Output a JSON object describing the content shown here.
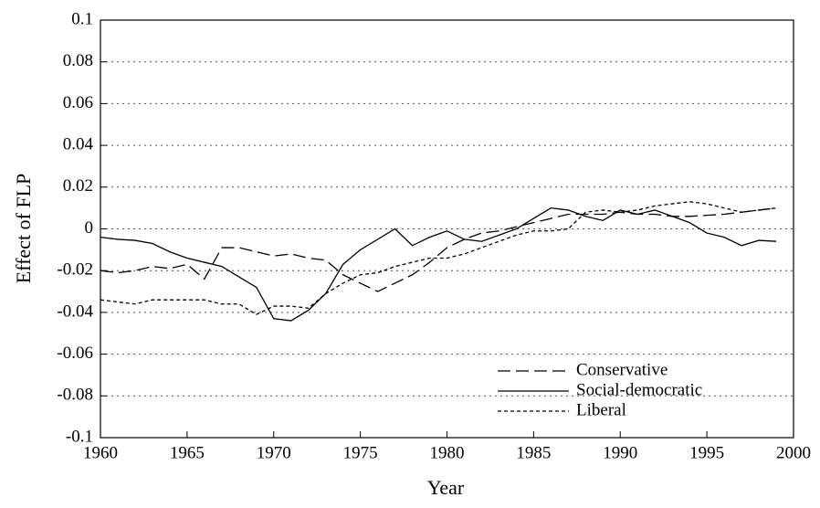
{
  "chart_data": {
    "type": "line",
    "x_label": "Year",
    "y_label": "Effect of FLP",
    "x": [
      1960,
      1961,
      1962,
      1963,
      1964,
      1965,
      1966,
      1967,
      1968,
      1969,
      1970,
      1971,
      1972,
      1973,
      1974,
      1975,
      1976,
      1977,
      1978,
      1979,
      1980,
      1981,
      1982,
      1983,
      1984,
      1985,
      1986,
      1987,
      1988,
      1989,
      1990,
      1991,
      1992,
      1993,
      1994,
      1995,
      1996,
      1997,
      1998,
      1999
    ],
    "series": [
      {
        "name": "Conservative",
        "color": "#000000",
        "line_style": "dashed",
        "values": [
          -0.02,
          -0.021,
          -0.02,
          -0.018,
          -0.019,
          -0.017,
          -0.024,
          -0.009,
          -0.009,
          -0.011,
          -0.013,
          -0.012,
          -0.014,
          -0.015,
          -0.022,
          -0.026,
          -0.03,
          -0.026,
          -0.022,
          -0.016,
          -0.009,
          -0.005,
          -0.002,
          -0.001,
          0.001,
          0.003,
          0.005,
          0.007,
          0.007,
          0.007,
          0.008,
          0.007,
          0.007,
          0.006,
          0.006,
          0.0065,
          0.007,
          0.008,
          0.009,
          0.01
        ]
      },
      {
        "name": "Social-democratic",
        "color": "#000000",
        "line_style": "solid",
        "values": [
          -0.004,
          -0.005,
          -0.0055,
          -0.007,
          -0.011,
          -0.014,
          -0.016,
          -0.018,
          -0.023,
          -0.028,
          -0.043,
          -0.044,
          -0.039,
          -0.031,
          -0.017,
          -0.01,
          -0.005,
          0.0,
          -0.008,
          -0.004,
          -0.001,
          -0.005,
          -0.006,
          -0.003,
          0.0,
          0.005,
          0.01,
          0.009,
          0.006,
          0.004,
          0.009,
          0.007,
          0.009,
          0.006,
          0.003,
          -0.002,
          -0.004,
          -0.008,
          -0.0055,
          -0.006
        ]
      },
      {
        "name": "Liberal",
        "color": "#000000",
        "line_style": "dotted",
        "values": [
          -0.034,
          -0.035,
          -0.036,
          -0.034,
          -0.034,
          -0.034,
          -0.034,
          -0.036,
          -0.036,
          -0.041,
          -0.037,
          -0.037,
          -0.038,
          -0.031,
          -0.026,
          -0.022,
          -0.021,
          -0.018,
          -0.016,
          -0.014,
          -0.014,
          -0.012,
          -0.009,
          -0.006,
          -0.003,
          -0.001,
          -0.001,
          0.0,
          0.008,
          0.009,
          0.008,
          0.009,
          0.011,
          0.012,
          0.013,
          0.012,
          0.01,
          0.008,
          0.009,
          0.01
        ]
      }
    ],
    "xlim": [
      1960,
      2000
    ],
    "xticks": [
      1960,
      1965,
      1970,
      1975,
      1980,
      1985,
      1990,
      1995,
      2000
    ],
    "ylim": [
      -0.1,
      0.1
    ],
    "yticks": [
      -0.1,
      -0.08,
      -0.06,
      -0.04,
      -0.02,
      0,
      0.02,
      0.04,
      0.06,
      0.08,
      0.1
    ],
    "grid": true,
    "legend_position": "lower right"
  }
}
